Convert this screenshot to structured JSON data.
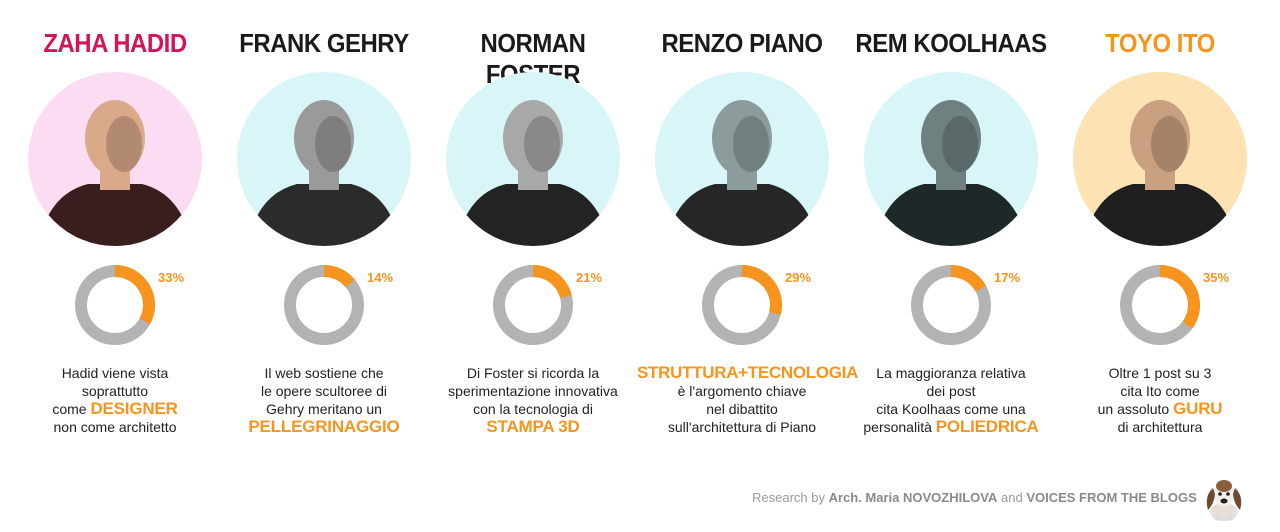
{
  "columns": [
    {
      "name": "ZAHA HADID",
      "name_color": "#d4145a",
      "portrait_bg": "#fbdcf2",
      "figure_tone": "#3a1e1e",
      "skin_tone": "#d9a98a",
      "pct_label": "33%",
      "pct_value": 33,
      "desc_lines": [
        {
          "text": "Hadid viene vista",
          "hl": ""
        },
        {
          "text": "soprattutto",
          "hl": ""
        },
        {
          "text": "come ",
          "hl": "DESIGNER"
        },
        {
          "text": "non come architetto",
          "hl": ""
        }
      ]
    },
    {
      "name": "FRANK GEHRY",
      "name_color": "#1a1a1a",
      "portrait_bg": "#d8f6f8",
      "figure_tone": "#2b2b2b",
      "skin_tone": "#9a9a9a",
      "pct_label": "14%",
      "pct_value": 14,
      "desc_lines": [
        {
          "text": "Il web sostiene che",
          "hl": ""
        },
        {
          "text": "le opere scultoree di",
          "hl": ""
        },
        {
          "text": "Gehry meritano un",
          "hl": ""
        },
        {
          "text": "",
          "hl": "PELLEGRINAGGIO"
        }
      ]
    },
    {
      "name": "NORMAN FOSTER",
      "name_color": "#1a1a1a",
      "portrait_bg": "#d8f6f8",
      "figure_tone": "#232323",
      "skin_tone": "#a8a8a8",
      "pct_label": "21%",
      "pct_value": 21,
      "desc_lines": [
        {
          "text": "Di Foster si ricorda la",
          "hl": ""
        },
        {
          "text": "sperimentazione innovativa",
          "hl": ""
        },
        {
          "text": "con la tecnologia di",
          "hl": ""
        },
        {
          "text": "",
          "hl": "STAMPA 3D"
        }
      ]
    },
    {
      "name": "RENZO PIANO",
      "name_color": "#1a1a1a",
      "portrait_bg": "#d8f6f8",
      "figure_tone": "#262626",
      "skin_tone": "#8c9c9c",
      "pct_label": "29%",
      "pct_value": 29,
      "desc_lines": [
        {
          "text": "",
          "hl": "STRUTTURA+TECNOLOGIA"
        },
        {
          "text": "è l'argomento chiave",
          "hl": ""
        },
        {
          "text": "nel dibattito",
          "hl": ""
        },
        {
          "text": "sull'architettura di Piano",
          "hl": ""
        }
      ]
    },
    {
      "name": "REM KOOLHAAS",
      "name_color": "#1a1a1a",
      "portrait_bg": "#d8f6f8",
      "figure_tone": "#1e2828",
      "skin_tone": "#6e8080",
      "pct_label": "17%",
      "pct_value": 17,
      "desc_lines": [
        {
          "text": "La maggioranza relativa",
          "hl": ""
        },
        {
          "text": "dei post",
          "hl": ""
        },
        {
          "text": "cita Koolhaas come una",
          "hl": ""
        },
        {
          "text": "personalità ",
          "hl": "POLIEDRICA"
        }
      ]
    },
    {
      "name": "TOYO ITO",
      "name_color": "#f7941d",
      "portrait_bg": "#fde3b4",
      "figure_tone": "#1f1f1f",
      "skin_tone": "#c9a080",
      "pct_label": "35%",
      "pct_value": 35,
      "desc_lines": [
        {
          "text": "Oltre 1 post su 3",
          "hl": ""
        },
        {
          "text": "cita Ito come",
          "hl": ""
        },
        {
          "text": "un assoluto ",
          "hl": "GURU"
        },
        {
          "text": "di architettura",
          "hl": ""
        }
      ]
    }
  ],
  "colors": {
    "accent": "#f7941d",
    "ring": "#b3b3b3"
  },
  "footer": {
    "prefix": "Research by ",
    "author": "Arch. Maria NOVOZHILOVA",
    "middle": " and ",
    "source": "VOICES FROM THE BLOGS"
  },
  "mascot_icon": "basset-hound-icon"
}
